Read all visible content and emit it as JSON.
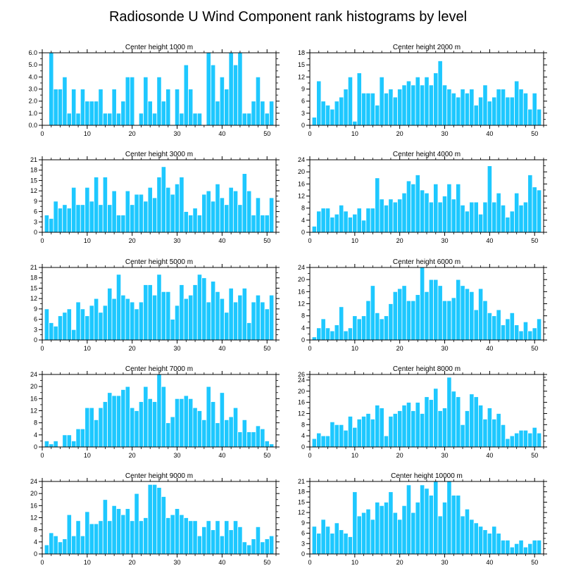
{
  "figure": {
    "title": "Radiosonde U Wind Component rank histograms by level"
  },
  "colors": {
    "bar": "#1ec8ff",
    "bar_edge": "#ffffff",
    "axis": "#000000"
  },
  "chart_data": [
    {
      "type": "bar",
      "title": "Center height 1000 m",
      "xlim": [
        0,
        52
      ],
      "ylim": [
        0,
        6
      ],
      "xticks": [
        0,
        10,
        20,
        30,
        40,
        50
      ],
      "xtick_labels": [
        "0",
        "10",
        "20",
        "30",
        "40",
        "50"
      ],
      "yticks": [
        0,
        1,
        2,
        3,
        4,
        5,
        6
      ],
      "ytick_labels": [
        "0.0",
        "1.0",
        "2.0",
        "3.0",
        "4.0",
        "5.0",
        "6.0"
      ],
      "categories": [
        1,
        2,
        3,
        4,
        5,
        6,
        7,
        8,
        9,
        10,
        11,
        12,
        13,
        14,
        15,
        16,
        17,
        18,
        19,
        20,
        21,
        22,
        23,
        24,
        25,
        26,
        27,
        28,
        29,
        30,
        31,
        32,
        33,
        34,
        35,
        36,
        37,
        38,
        39,
        40,
        41,
        42,
        43,
        44,
        45,
        46,
        47,
        48,
        49,
        50,
        51
      ],
      "values": [
        0,
        6,
        3,
        3,
        4,
        1,
        3,
        1,
        3,
        2,
        2,
        2,
        3,
        1,
        1,
        3,
        1,
        2,
        4,
        4,
        0,
        1,
        4,
        2,
        1,
        4,
        2,
        3,
        0,
        3,
        1,
        5,
        3,
        1,
        1,
        0,
        6,
        5,
        2,
        4,
        3,
        6,
        5,
        6,
        1,
        1,
        2,
        4,
        2,
        1,
        2
      ]
    },
    {
      "type": "bar",
      "title": "Center height 2000 m",
      "xlim": [
        0,
        52
      ],
      "ylim": [
        0,
        18
      ],
      "xticks": [
        0,
        10,
        20,
        30,
        40,
        50
      ],
      "xtick_labels": [
        "0",
        "10",
        "20",
        "30",
        "40",
        "50"
      ],
      "yticks": [
        0,
        3,
        6,
        9,
        12,
        15,
        18
      ],
      "ytick_labels": [
        "0",
        "3",
        "6",
        "9",
        "12",
        "15",
        "18"
      ],
      "categories": [
        1,
        2,
        3,
        4,
        5,
        6,
        7,
        8,
        9,
        10,
        11,
        12,
        13,
        14,
        15,
        16,
        17,
        18,
        19,
        20,
        21,
        22,
        23,
        24,
        25,
        26,
        27,
        28,
        29,
        30,
        31,
        32,
        33,
        34,
        35,
        36,
        37,
        38,
        39,
        40,
        41,
        42,
        43,
        44,
        45,
        46,
        47,
        48,
        49,
        50,
        51
      ],
      "values": [
        2,
        11,
        6,
        5,
        4,
        6,
        7,
        9,
        12,
        1,
        13,
        8,
        8,
        8,
        5,
        12,
        8,
        9,
        7,
        9,
        10,
        11,
        10,
        12,
        10,
        12,
        10,
        13,
        16,
        10,
        9,
        8,
        7,
        9,
        8,
        9,
        5,
        7,
        10,
        6,
        7,
        9,
        9,
        7,
        7,
        11,
        9,
        8,
        4,
        8,
        4
      ]
    },
    {
      "type": "bar",
      "title": "Center height 3000 m",
      "xlim": [
        0,
        52
      ],
      "ylim": [
        0,
        21
      ],
      "xticks": [
        0,
        10,
        20,
        30,
        40,
        50
      ],
      "xtick_labels": [
        "0",
        "10",
        "20",
        "30",
        "40",
        "50"
      ],
      "yticks": [
        0,
        3,
        6,
        9,
        12,
        15,
        18,
        21
      ],
      "ytick_labels": [
        "0",
        "3",
        "6",
        "9",
        "12",
        "15",
        "18",
        "21"
      ],
      "categories": [
        1,
        2,
        3,
        4,
        5,
        6,
        7,
        8,
        9,
        10,
        11,
        12,
        13,
        14,
        15,
        16,
        17,
        18,
        19,
        20,
        21,
        22,
        23,
        24,
        25,
        26,
        27,
        28,
        29,
        30,
        31,
        32,
        33,
        34,
        35,
        36,
        37,
        38,
        39,
        40,
        41,
        42,
        43,
        44,
        45,
        46,
        47,
        48,
        49,
        50,
        51
      ],
      "values": [
        5,
        4,
        9,
        7,
        8,
        7,
        13,
        8,
        8,
        13,
        9,
        16,
        8,
        16,
        8,
        12,
        5,
        5,
        12,
        8,
        11,
        11,
        9,
        13,
        10,
        16,
        19,
        13,
        11,
        14,
        16,
        6,
        5,
        7,
        5,
        11,
        12,
        9,
        14,
        10,
        8,
        13,
        12,
        8,
        17,
        12,
        5,
        10,
        5,
        5,
        10
      ]
    },
    {
      "type": "bar",
      "title": "Center height 4000 m",
      "xlim": [
        0,
        52
      ],
      "ylim": [
        0,
        24
      ],
      "xticks": [
        0,
        10,
        20,
        30,
        40,
        50
      ],
      "xtick_labels": [
        "0",
        "10",
        "20",
        "30",
        "40",
        "50"
      ],
      "yticks": [
        0,
        4,
        8,
        12,
        16,
        20,
        24
      ],
      "ytick_labels": [
        "0",
        "4",
        "8",
        "12",
        "16",
        "20",
        "24"
      ],
      "categories": [
        1,
        2,
        3,
        4,
        5,
        6,
        7,
        8,
        9,
        10,
        11,
        12,
        13,
        14,
        15,
        16,
        17,
        18,
        19,
        20,
        21,
        22,
        23,
        24,
        25,
        26,
        27,
        28,
        29,
        30,
        31,
        32,
        33,
        34,
        35,
        36,
        37,
        38,
        39,
        40,
        41,
        42,
        43,
        44,
        45,
        46,
        47,
        48,
        49,
        50,
        51
      ],
      "values": [
        2,
        7,
        8,
        8,
        5,
        6,
        9,
        7,
        5,
        6,
        8,
        4,
        8,
        8,
        18,
        11,
        9,
        11,
        10,
        11,
        13,
        17,
        16,
        19,
        14,
        13,
        10,
        16,
        10,
        12,
        16,
        11,
        16,
        9,
        7,
        10,
        10,
        6,
        10,
        22,
        10,
        13,
        9,
        5,
        7,
        13,
        9,
        10,
        19,
        15,
        14
      ]
    },
    {
      "type": "bar",
      "title": "Center height 5000 m",
      "xlim": [
        0,
        52
      ],
      "ylim": [
        0,
        21
      ],
      "xticks": [
        0,
        10,
        20,
        30,
        40,
        50
      ],
      "xtick_labels": [
        "0",
        "10",
        "20",
        "30",
        "40",
        "50"
      ],
      "yticks": [
        0,
        3,
        6,
        9,
        12,
        15,
        18,
        21
      ],
      "ytick_labels": [
        "0",
        "3",
        "6",
        "9",
        "12",
        "15",
        "18",
        "21"
      ],
      "categories": [
        1,
        2,
        3,
        4,
        5,
        6,
        7,
        8,
        9,
        10,
        11,
        12,
        13,
        14,
        15,
        16,
        17,
        18,
        19,
        20,
        21,
        22,
        23,
        24,
        25,
        26,
        27,
        28,
        29,
        30,
        31,
        32,
        33,
        34,
        35,
        36,
        37,
        38,
        39,
        40,
        41,
        42,
        43,
        44,
        45,
        46,
        47,
        48,
        49,
        50,
        51
      ],
      "values": [
        9,
        5,
        4,
        7,
        8,
        9,
        3,
        11,
        9,
        7,
        10,
        12,
        8,
        10,
        15,
        12,
        19,
        13,
        12,
        11,
        9,
        11,
        16,
        16,
        13,
        19,
        14,
        14,
        6,
        10,
        16,
        12,
        13,
        16,
        19,
        18,
        11,
        17,
        14,
        12,
        8,
        15,
        11,
        13,
        15,
        5,
        11,
        13,
        11,
        9,
        13
      ]
    },
    {
      "type": "bar",
      "title": "Center height 6000 m",
      "xlim": [
        0,
        52
      ],
      "ylim": [
        0,
        24
      ],
      "xticks": [
        0,
        10,
        20,
        30,
        40,
        50
      ],
      "xtick_labels": [
        "0",
        "10",
        "20",
        "30",
        "40",
        "50"
      ],
      "yticks": [
        0,
        4,
        8,
        12,
        16,
        20,
        24
      ],
      "ytick_labels": [
        "0",
        "4",
        "8",
        "12",
        "16",
        "20",
        "24"
      ],
      "categories": [
        1,
        2,
        3,
        4,
        5,
        6,
        7,
        8,
        9,
        10,
        11,
        12,
        13,
        14,
        15,
        16,
        17,
        18,
        19,
        20,
        21,
        22,
        23,
        24,
        25,
        26,
        27,
        28,
        29,
        30,
        31,
        32,
        33,
        34,
        35,
        36,
        37,
        38,
        39,
        40,
        41,
        42,
        43,
        44,
        45,
        46,
        47,
        48,
        49,
        50,
        51
      ],
      "values": [
        1,
        4,
        7,
        4,
        3,
        5,
        11,
        3,
        4,
        8,
        7,
        8,
        13,
        18,
        9,
        7,
        8,
        12,
        16,
        17,
        18,
        13,
        13,
        15,
        24,
        16,
        20,
        20,
        18,
        13,
        13,
        14,
        20,
        18,
        17,
        16,
        10,
        17,
        13,
        9,
        8,
        10,
        5,
        7,
        9,
        5,
        3,
        6,
        3,
        4,
        7
      ]
    },
    {
      "type": "bar",
      "title": "Center height 7000 m",
      "xlim": [
        0,
        52
      ],
      "ylim": [
        0,
        24
      ],
      "xticks": [
        0,
        10,
        20,
        30,
        40,
        50
      ],
      "xtick_labels": [
        "0",
        "10",
        "20",
        "30",
        "40",
        "50"
      ],
      "yticks": [
        0,
        4,
        8,
        12,
        16,
        20,
        24
      ],
      "ytick_labels": [
        "0",
        "4",
        "8",
        "12",
        "16",
        "20",
        "24"
      ],
      "categories": [
        1,
        2,
        3,
        4,
        5,
        6,
        7,
        8,
        9,
        10,
        11,
        12,
        13,
        14,
        15,
        16,
        17,
        18,
        19,
        20,
        21,
        22,
        23,
        24,
        25,
        26,
        27,
        28,
        29,
        30,
        31,
        32,
        33,
        34,
        35,
        36,
        37,
        38,
        39,
        40,
        41,
        42,
        43,
        44,
        45,
        46,
        47,
        48,
        49,
        50,
        51
      ],
      "values": [
        2,
        1,
        2,
        0,
        4,
        4,
        2,
        6,
        6,
        13,
        13,
        9,
        13,
        15,
        18,
        17,
        17,
        19,
        20,
        13,
        12,
        15,
        20,
        16,
        15,
        24,
        20,
        8,
        10,
        16,
        16,
        17,
        16,
        13,
        12,
        9,
        20,
        15,
        8,
        18,
        9,
        10,
        13,
        5,
        9,
        5,
        5,
        7,
        6,
        2,
        1
      ]
    },
    {
      "type": "bar",
      "title": "Center height 8000 m",
      "xlim": [
        0,
        52
      ],
      "ylim": [
        0,
        26
      ],
      "xticks": [
        0,
        10,
        20,
        30,
        40,
        50
      ],
      "xtick_labels": [
        "0",
        "10",
        "20",
        "30",
        "40",
        "50"
      ],
      "yticks": [
        0,
        4,
        8,
        12,
        16,
        20,
        24,
        26
      ],
      "ytick_labels": [
        "0",
        "4",
        "8",
        "12",
        "16",
        "20",
        "24",
        "26"
      ],
      "categories": [
        1,
        2,
        3,
        4,
        5,
        6,
        7,
        8,
        9,
        10,
        11,
        12,
        13,
        14,
        15,
        16,
        17,
        18,
        19,
        20,
        21,
        22,
        23,
        24,
        25,
        26,
        27,
        28,
        29,
        30,
        31,
        32,
        33,
        34,
        35,
        36,
        37,
        38,
        39,
        40,
        41,
        42,
        43,
        44,
        45,
        46,
        47,
        48,
        49,
        50,
        51
      ],
      "values": [
        3,
        5,
        4,
        4,
        9,
        8,
        8,
        6,
        11,
        7,
        10,
        11,
        12,
        10,
        15,
        14,
        4,
        11,
        12,
        13,
        15,
        16,
        13,
        16,
        12,
        18,
        17,
        21,
        13,
        14,
        25,
        20,
        18,
        8,
        13,
        19,
        18,
        15,
        10,
        14,
        10,
        12,
        8,
        3,
        4,
        5,
        6,
        6,
        5,
        7,
        5
      ]
    },
    {
      "type": "bar",
      "title": "Center height 9000 m",
      "xlim": [
        0,
        52
      ],
      "ylim": [
        0,
        24
      ],
      "xticks": [
        0,
        10,
        20,
        30,
        40,
        50
      ],
      "xtick_labels": [
        "0",
        "10",
        "20",
        "30",
        "40",
        "50"
      ],
      "yticks": [
        0,
        4,
        8,
        12,
        16,
        20,
        24
      ],
      "ytick_labels": [
        "0",
        "4",
        "8",
        "12",
        "16",
        "20",
        "24"
      ],
      "categories": [
        1,
        2,
        3,
        4,
        5,
        6,
        7,
        8,
        9,
        10,
        11,
        12,
        13,
        14,
        15,
        16,
        17,
        18,
        19,
        20,
        21,
        22,
        23,
        24,
        25,
        26,
        27,
        28,
        29,
        30,
        31,
        32,
        33,
        34,
        35,
        36,
        37,
        38,
        39,
        40,
        41,
        42,
        43,
        44,
        45,
        46,
        47,
        48,
        49,
        50,
        51
      ],
      "values": [
        3,
        7,
        6,
        4,
        5,
        13,
        6,
        11,
        6,
        14,
        10,
        10,
        11,
        18,
        11,
        16,
        15,
        13,
        15,
        11,
        20,
        11,
        12,
        23,
        23,
        22,
        19,
        12,
        13,
        15,
        13,
        12,
        11,
        11,
        6,
        9,
        11,
        8,
        11,
        6,
        11,
        8,
        11,
        9,
        4,
        3,
        5,
        9,
        4,
        5,
        6
      ]
    },
    {
      "type": "bar",
      "title": "Center height 10000 m",
      "xlim": [
        0,
        52
      ],
      "ylim": [
        0,
        21
      ],
      "xticks": [
        0,
        10,
        20,
        30,
        40,
        50
      ],
      "xtick_labels": [
        "0",
        "10",
        "20",
        "30",
        "40",
        "50"
      ],
      "yticks": [
        0,
        3,
        6,
        9,
        12,
        15,
        18,
        21
      ],
      "ytick_labels": [
        "0",
        "3",
        "6",
        "9",
        "12",
        "15",
        "18",
        "21"
      ],
      "categories": [
        1,
        2,
        3,
        4,
        5,
        6,
        7,
        8,
        9,
        10,
        11,
        12,
        13,
        14,
        15,
        16,
        17,
        18,
        19,
        20,
        21,
        22,
        23,
        24,
        25,
        26,
        27,
        28,
        29,
        30,
        31,
        32,
        33,
        34,
        35,
        36,
        37,
        38,
        39,
        40,
        41,
        42,
        43,
        44,
        45,
        46,
        47,
        48,
        49,
        50,
        51
      ],
      "values": [
        8,
        6,
        10,
        8,
        6,
        9,
        7,
        6,
        5,
        18,
        11,
        12,
        13,
        10,
        15,
        14,
        15,
        18,
        12,
        10,
        14,
        20,
        12,
        15,
        20,
        19,
        17,
        21,
        11,
        15,
        21,
        17,
        17,
        11,
        13,
        10,
        9,
        8,
        7,
        6,
        8,
        6,
        4,
        4,
        2,
        3,
        4,
        2,
        3,
        4,
        4
      ]
    }
  ]
}
